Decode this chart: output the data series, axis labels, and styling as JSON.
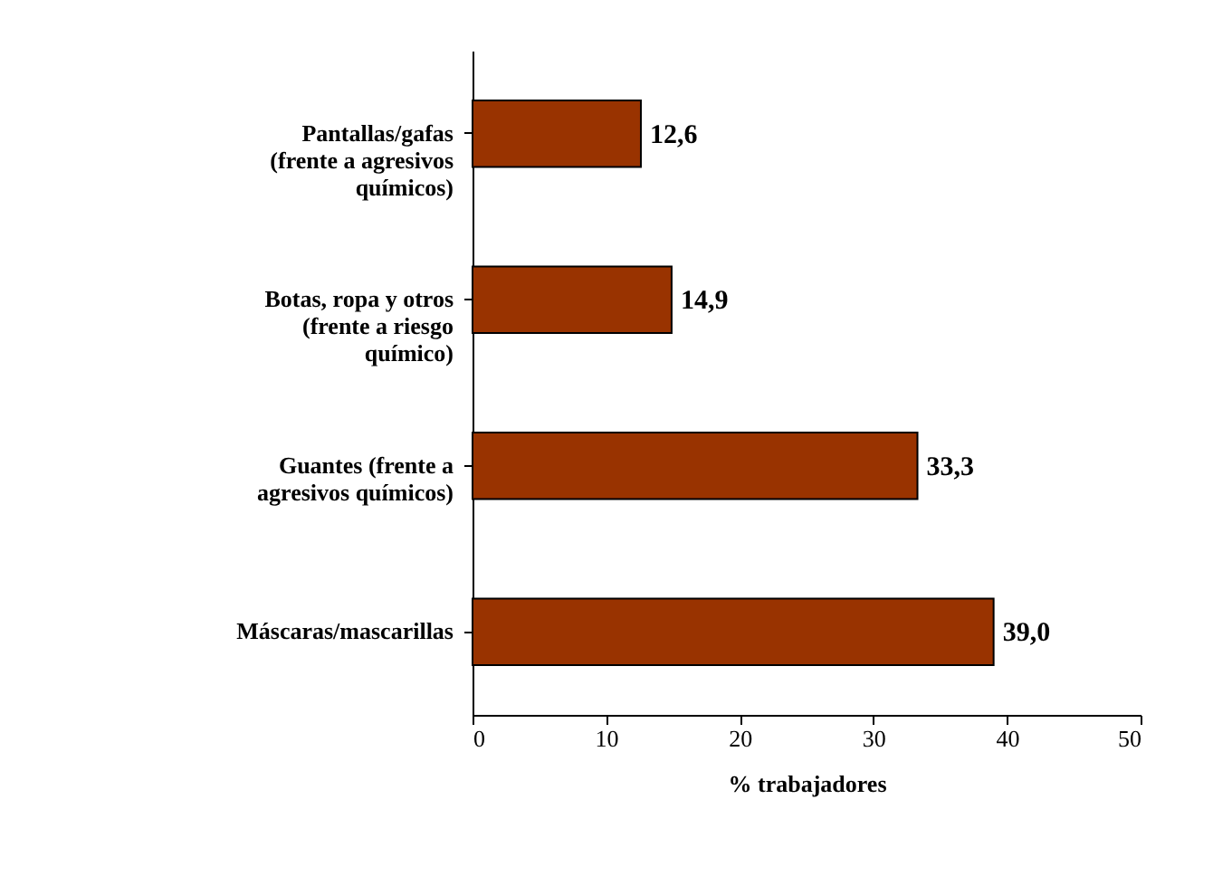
{
  "chart_data": {
    "type": "bar",
    "orientation": "horizontal",
    "xlabel": "% trabajadores",
    "categories": [
      "Pantallas/gafas\n(frente a agresivos\nquímicos)",
      "Botas, ropa y otros\n(frente a riesgo\nquímico)",
      "Guantes (frente a\nagresivos químicos)",
      "Máscaras/mascarillas"
    ],
    "values": [
      12.6,
      14.9,
      33.3,
      39.0
    ],
    "value_labels": [
      "12,6",
      "14,9",
      "33,3",
      "39,0"
    ],
    "color": "#993300",
    "xlim": [
      0,
      50
    ],
    "xticks": [
      0,
      10,
      20,
      30,
      40,
      50
    ],
    "grid": false
  }
}
